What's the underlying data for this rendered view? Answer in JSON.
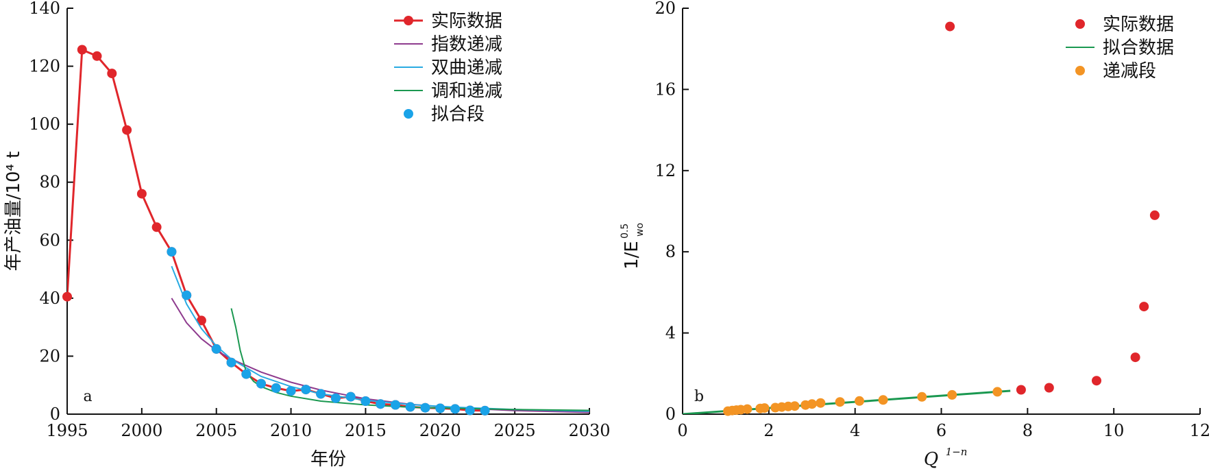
{
  "chart_data": [
    {
      "panel": "a",
      "type": "line",
      "xlabel": "年份",
      "ylabel": "年产油量/10⁴ t",
      "xlim": [
        1995,
        2030
      ],
      "ylim": [
        0,
        140
      ],
      "xticks": [
        1995,
        2000,
        2005,
        2010,
        2015,
        2020,
        2025,
        2030
      ],
      "yticks": [
        0,
        20,
        40,
        60,
        80,
        100,
        120,
        140
      ],
      "legend_position": "top-right",
      "series": [
        {
          "name": "实际数据",
          "kind": "line+markers",
          "color": "#e0262b",
          "x": [
            1995,
            1996,
            1997,
            1998,
            1999,
            2000,
            2001,
            2002,
            2003,
            2004,
            2005,
            2006,
            2007,
            2008,
            2009,
            2010,
            2011,
            2012,
            2013,
            2014,
            2015,
            2016,
            2017,
            2018,
            2019,
            2020,
            2021,
            2022,
            2023
          ],
          "y": [
            40.5,
            125.7,
            123.5,
            117.5,
            98,
            76,
            64.5,
            56,
            41,
            32.3,
            22.5,
            17.8,
            13.8,
            10.5,
            9,
            8,
            8.5,
            7,
            5.5,
            6,
            4.5,
            3.5,
            3.2,
            2.5,
            2.2,
            2,
            1.8,
            1.3,
            1.2
          ]
        },
        {
          "name": "指数递减",
          "kind": "line",
          "color": "#8e3b8e",
          "x": [
            2002,
            2003,
            2004,
            2005,
            2006,
            2008,
            2010,
            2012,
            2015,
            2018,
            2021,
            2025,
            2030
          ],
          "y": [
            40,
            31.5,
            26,
            22,
            19,
            14.5,
            11,
            8.3,
            5.3,
            3.4,
            2.2,
            1.2,
            0.6
          ]
        },
        {
          "name": "双曲递减",
          "kind": "line",
          "color": "#29abe2",
          "x": [
            2002,
            2003,
            2004,
            2005,
            2006,
            2008,
            2010,
            2012,
            2015,
            2018,
            2021,
            2025,
            2030
          ],
          "y": [
            51,
            38,
            29.5,
            23.5,
            19,
            13,
            9.5,
            7,
            4.8,
            3.3,
            2.4,
            1.6,
            1
          ]
        },
        {
          "name": "调和递减",
          "kind": "line",
          "color": "#1a9850",
          "x": [
            2006,
            2006.3,
            2006.6,
            2007,
            2007.5,
            2008,
            2009,
            2010,
            2012,
            2015,
            2018,
            2021,
            2025,
            2030
          ],
          "y": [
            36.5,
            30,
            22,
            14.5,
            11.3,
            9.5,
            7.5,
            6.2,
            4.5,
            3.2,
            2.4,
            2,
            1.6,
            1.3
          ]
        },
        {
          "name": "拟合段",
          "kind": "markers",
          "color": "#1aa3e8",
          "x": [
            2002,
            2003,
            2005,
            2006,
            2007,
            2008,
            2009,
            2010,
            2011,
            2012,
            2013,
            2014,
            2015,
            2016,
            2017,
            2018,
            2019,
            2020,
            2021,
            2022,
            2023
          ],
          "y": [
            56,
            41,
            22.5,
            17.8,
            13.8,
            10.5,
            9,
            8,
            8.5,
            7,
            5.5,
            6,
            4.5,
            3.5,
            3.2,
            2.5,
            2.2,
            2,
            1.8,
            1.3,
            1.2
          ]
        }
      ]
    },
    {
      "panel": "b",
      "type": "scatter",
      "xlabel": "Q",
      "xlabel_sup": "1−n",
      "ylabel": "1/E",
      "ylabel_sup": "0.5",
      "ylabel_sub": "wo",
      "xlim": [
        0,
        12
      ],
      "ylim": [
        0,
        20
      ],
      "xticks": [
        0,
        2,
        4,
        6,
        8,
        10,
        12
      ],
      "yticks": [
        0,
        4,
        8,
        12,
        16,
        20
      ],
      "legend_position": "top-right",
      "series": [
        {
          "name": "实际数据",
          "kind": "markers",
          "color": "#e0262b",
          "x": [
            6.2,
            7.85,
            8.5,
            9.6,
            10.5,
            10.7,
            10.95
          ],
          "y": [
            19.1,
            1.2,
            1.3,
            1.65,
            2.8,
            5.3,
            9.8
          ]
        },
        {
          "name": "拟合数据",
          "kind": "line",
          "color": "#1a9850",
          "x": [
            0,
            7.6
          ],
          "y": [
            0,
            1.15
          ]
        },
        {
          "name": "递减段",
          "kind": "markers",
          "color": "#f39424",
          "x": [
            1.05,
            1.15,
            1.25,
            1.35,
            1.5,
            1.8,
            1.9,
            2.15,
            2.3,
            2.45,
            2.6,
            2.85,
            3.0,
            3.2,
            3.65,
            4.1,
            4.65,
            5.55,
            6.25,
            7.3
          ],
          "y": [
            0.15,
            0.18,
            0.2,
            0.22,
            0.25,
            0.28,
            0.3,
            0.32,
            0.35,
            0.38,
            0.4,
            0.45,
            0.5,
            0.55,
            0.6,
            0.65,
            0.7,
            0.85,
            0.95,
            1.1
          ]
        }
      ]
    }
  ]
}
